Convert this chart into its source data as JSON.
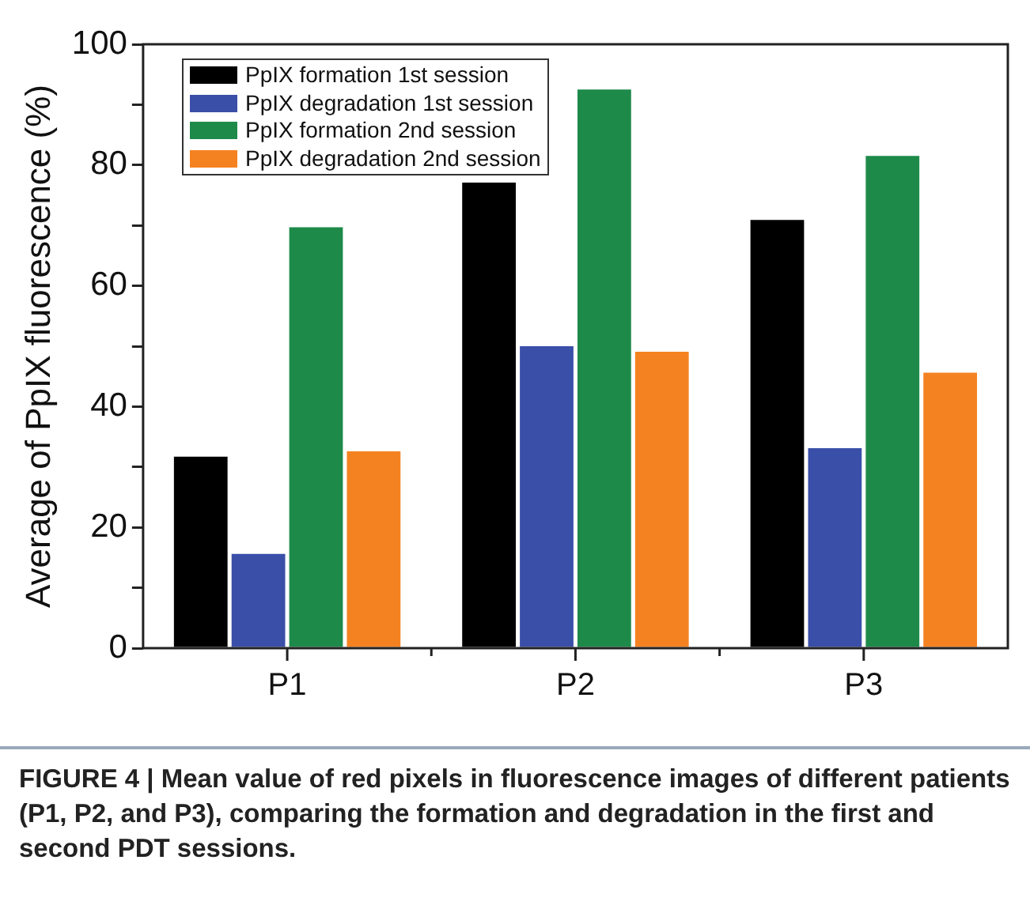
{
  "chart_data": {
    "type": "bar",
    "ylabel": "Average of PpIX fluorescence (%)",
    "categories": [
      "P1",
      "P2",
      "P3"
    ],
    "series": [
      {
        "name": "PpIX formation 1st session",
        "color": "#000000",
        "values": [
          31.7,
          77.1,
          70.9
        ]
      },
      {
        "name": "PpIX degradation 1st session",
        "color": "#3a4fa8",
        "values": [
          15.6,
          50.0,
          33.1
        ]
      },
      {
        "name": "PpIX formation 2nd session",
        "color": "#1e8a4a",
        "values": [
          69.7,
          92.5,
          81.5
        ]
      },
      {
        "name": "PpIX degradation 2nd session",
        "color": "#f58220",
        "values": [
          32.6,
          49.1,
          45.6
        ]
      }
    ],
    "ylim": [
      0,
      100
    ],
    "yticks": [
      0,
      {
        "value": 10,
        "label": null
      },
      20,
      {
        "value": 30,
        "label": null
      },
      40,
      {
        "value": 50,
        "label": null
      },
      60,
      {
        "value": 70,
        "label": null
      },
      80,
      {
        "value": 90,
        "label": null
      },
      100
    ],
    "grid": false,
    "legend": "top left",
    "annotations": [
      "FIGURE 4 | Mean value of red pixels in fluorescence images of different patients (P1, P2, and P3), comparing the formation and degradation in the first and second PDT sessions."
    ]
  }
}
